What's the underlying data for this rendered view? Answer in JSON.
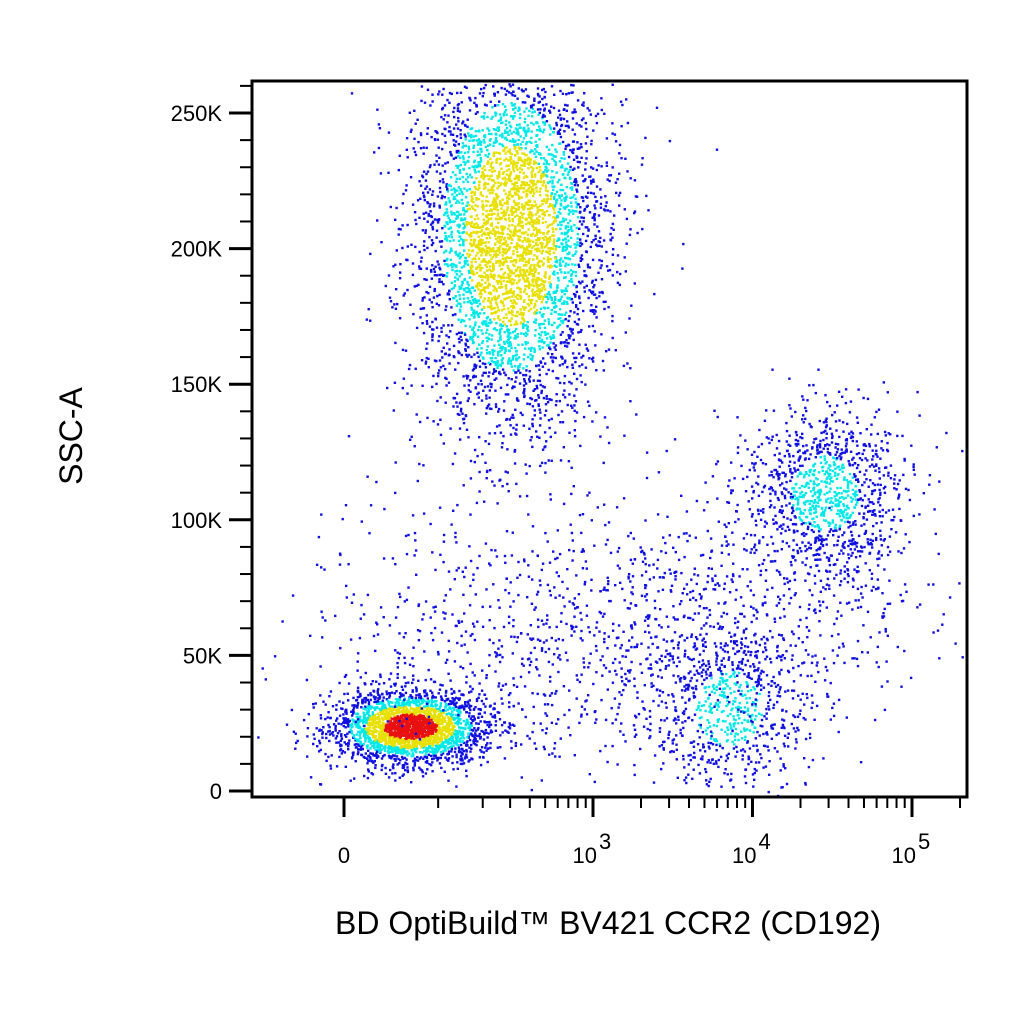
{
  "chart_data": {
    "type": "scatter",
    "subtype": "flow-cytometry-density-dot-plot",
    "xlabel": "BD OptiBuild™ BV421 CCR2 (CD192)",
    "ylabel": "SSC-A",
    "x_scale": "biexponential",
    "x_ticks": [
      {
        "value": 0,
        "base": "0",
        "exp": ""
      },
      {
        "value": 1000,
        "base": "10",
        "exp": "3"
      },
      {
        "value": 10000,
        "base": "10",
        "exp": "4"
      },
      {
        "value": 100000,
        "base": "10",
        "exp": "5"
      }
    ],
    "y_ticks": [
      {
        "value": 0,
        "label": "0"
      },
      {
        "value": 50000,
        "label": "50K"
      },
      {
        "value": 100000,
        "label": "100K"
      },
      {
        "value": 150000,
        "label": "150K"
      },
      {
        "value": 200000,
        "label": "200K"
      },
      {
        "value": 250000,
        "label": "250K"
      }
    ],
    "ylim": [
      0,
      262144
    ],
    "xlim": [
      -300,
      262144
    ],
    "grid": false,
    "colors": {
      "low_density": "#1010e0",
      "mid_density": "#00e8e8",
      "high_density": "#e8e000",
      "peak_density": "#e81010"
    },
    "populations": [
      {
        "x_center": 60,
        "y_center": 24000,
        "density": "peak",
        "events": 2600
      },
      {
        "x_center": 300,
        "y_center": 205000,
        "density": "high",
        "events": 4200
      },
      {
        "x_center": 7000,
        "y_center": 31000,
        "density": "medium",
        "events": 700
      },
      {
        "x_center": 28000,
        "y_center": 110000,
        "density": "medium",
        "events": 1100
      },
      {
        "x_center": 1500,
        "y_center": 60000,
        "density": "low",
        "events": 1300
      }
    ]
  }
}
